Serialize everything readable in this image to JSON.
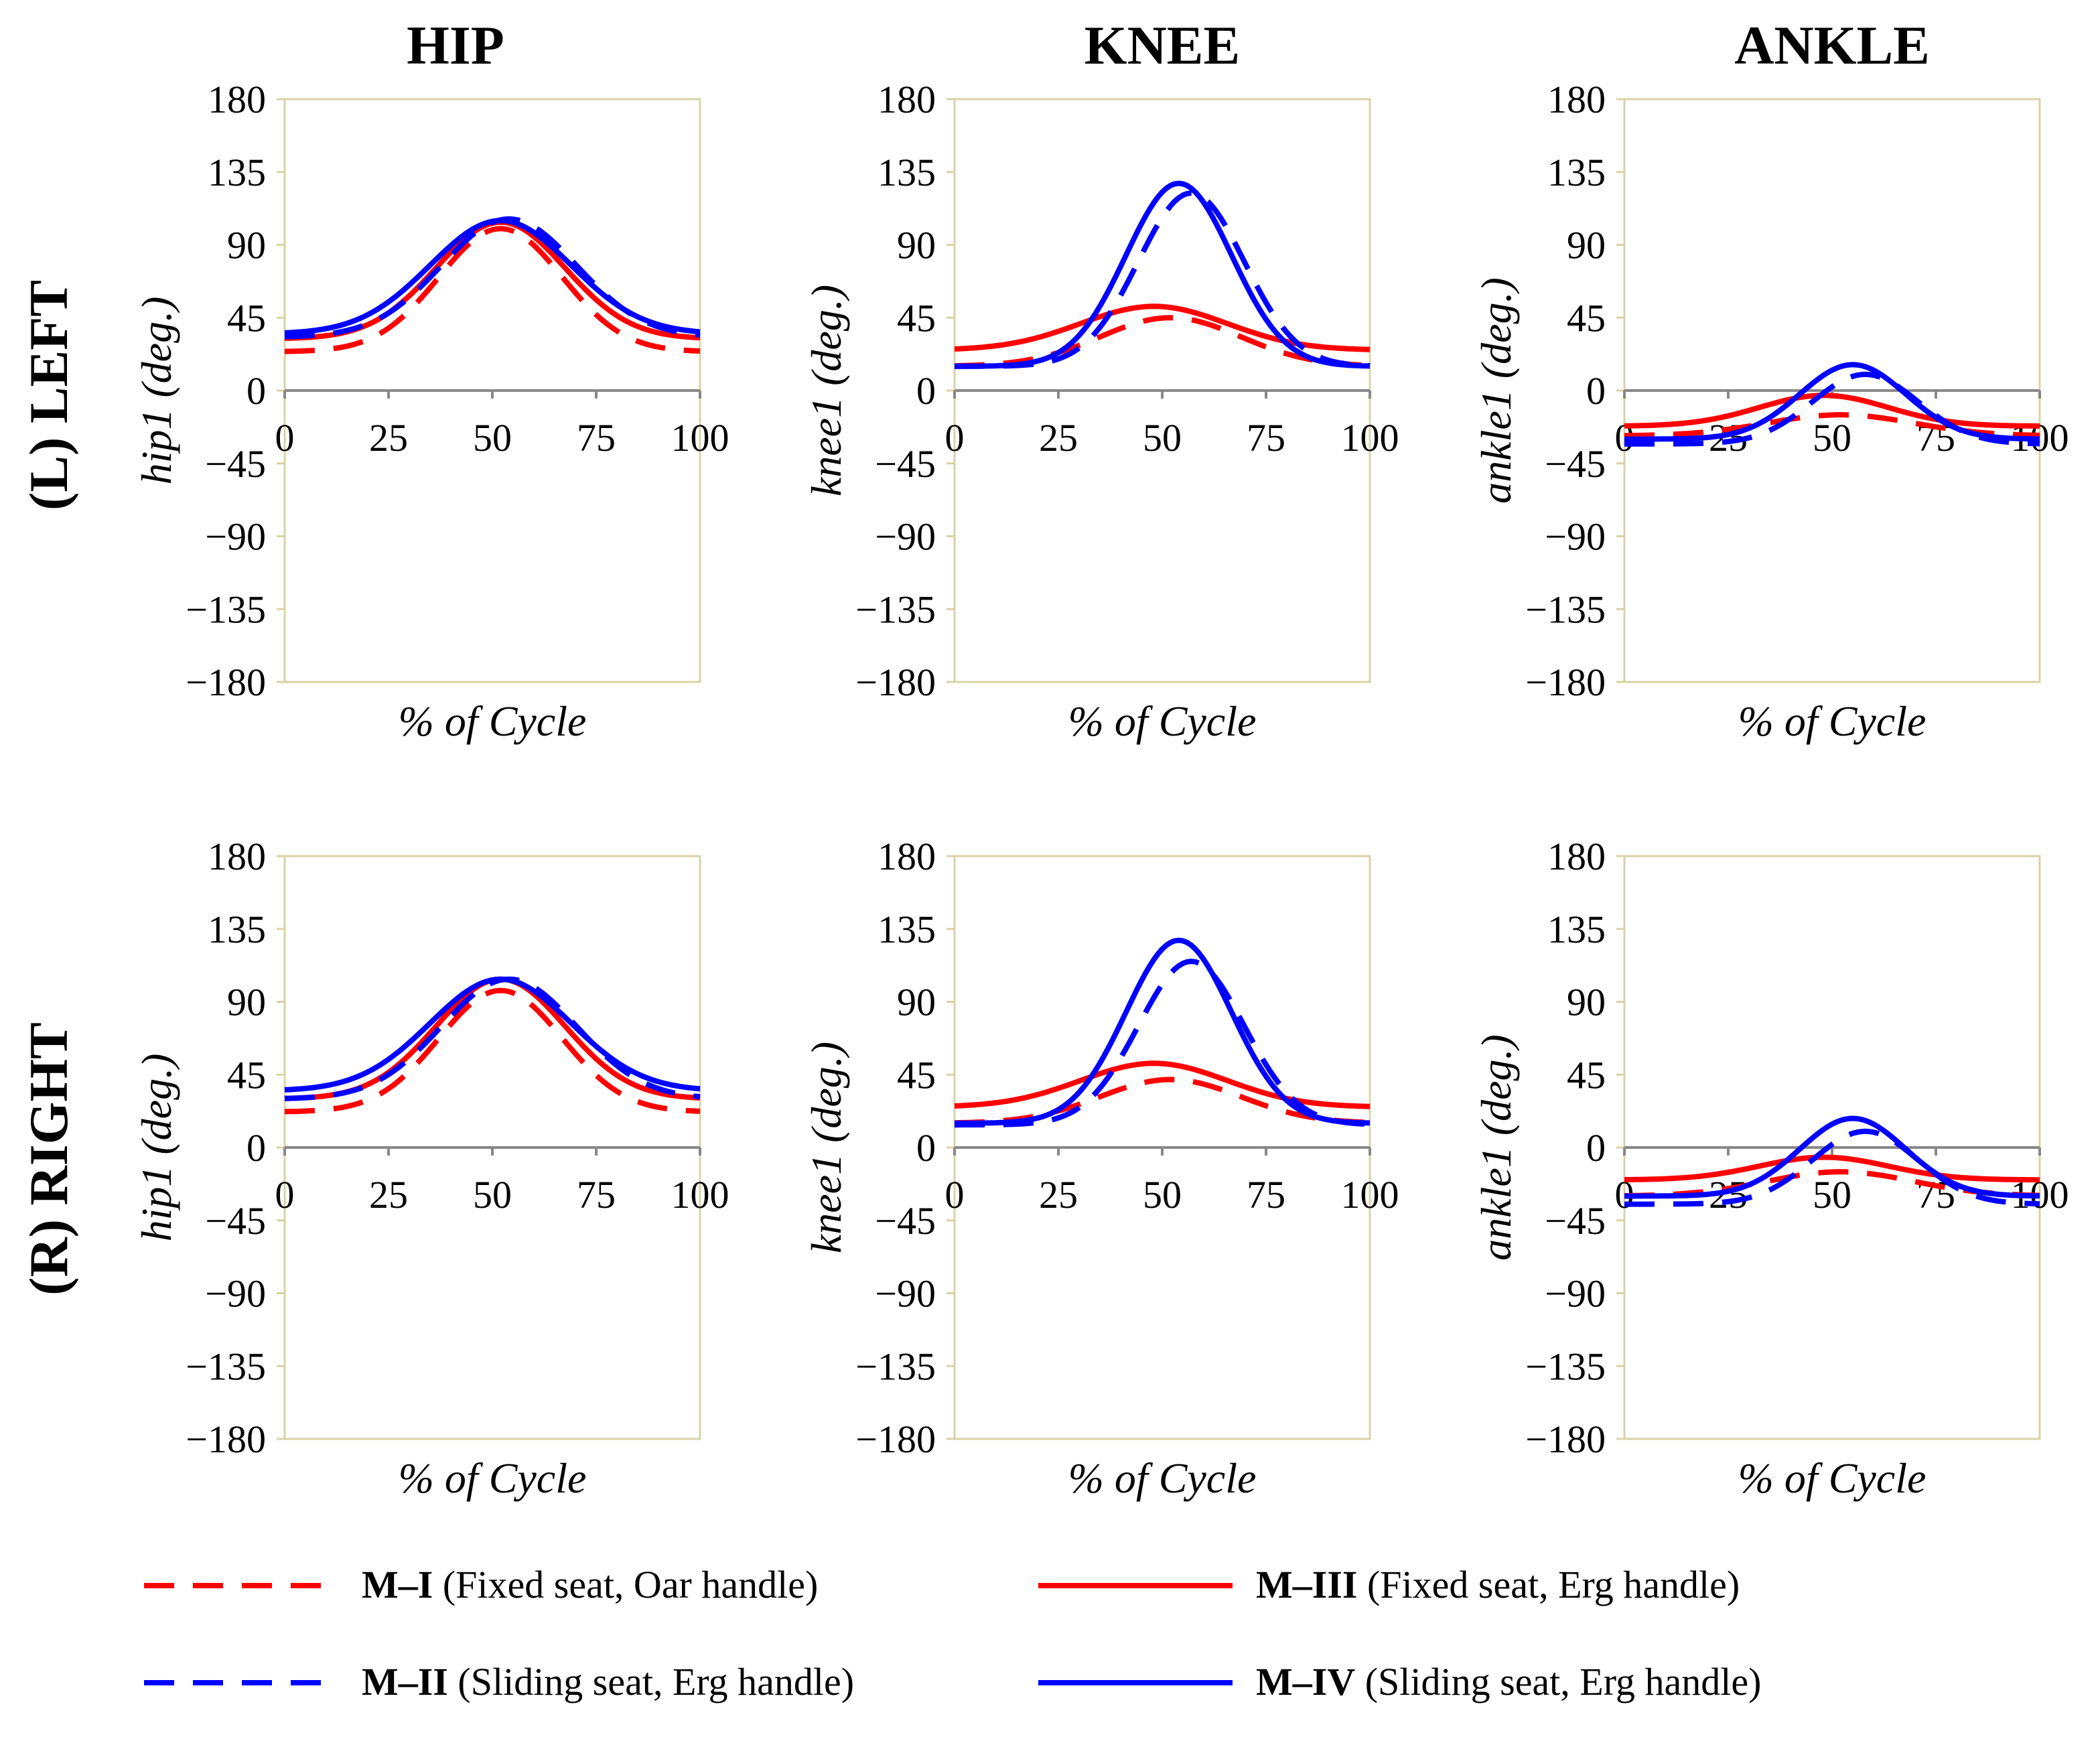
{
  "column_titles": [
    "HIP",
    "KNEE",
    "ANKLE"
  ],
  "row_titles": [
    "(L) LEFT",
    "(R) RIGHT"
  ],
  "colors": {
    "red": "#ff0000",
    "blue": "#0000ff",
    "frame": "#d8d3a6",
    "zero_line": "#888888"
  },
  "legend": [
    {
      "code": "M–I",
      "desc": " (Fixed seat, Oar handle)",
      "color": "#ff0000",
      "dashed": true
    },
    {
      "code": "M–III",
      "desc": " (Fixed seat, Erg handle)",
      "color": "#ff0000",
      "dashed": false
    },
    {
      "code": "M–II",
      "desc": " (Sliding seat, Erg handle)",
      "color": "#0000ff",
      "dashed": true
    },
    {
      "code": "M–IV",
      "desc": " (Sliding seat, Erg handle)",
      "color": "#0000ff",
      "dashed": false
    }
  ],
  "chart_data": [
    {
      "type": "line",
      "row": "(L) LEFT",
      "col": "HIP",
      "xlabel": "% of Cycle",
      "ylabel": "hip1 (deg.)",
      "xlim": [
        0,
        100
      ],
      "ylim": [
        -180,
        180
      ],
      "xticks": [
        "0",
        "25",
        "50",
        "75",
        "100"
      ],
      "yticks": [
        "180",
        "135",
        "90",
        "45",
        "0",
        "−45",
        "−90",
        "−135",
        "−180"
      ],
      "series": [
        {
          "name": "M–I",
          "base": 24,
          "peak": 100,
          "tp": 52,
          "w": 21
        },
        {
          "name": "M–III",
          "base": 32,
          "peak": 104,
          "tp": 52,
          "w": 22
        },
        {
          "name": "M–II",
          "base": 33,
          "peak": 106,
          "tp": 54,
          "w": 23
        },
        {
          "name": "M–IV",
          "base": 35,
          "peak": 105,
          "tp": 52,
          "w": 24
        }
      ]
    },
    {
      "type": "line",
      "row": "(L) LEFT",
      "col": "KNEE",
      "xlabel": "% of Cycle",
      "ylabel": "knee1 (deg.)",
      "xlim": [
        0,
        100
      ],
      "ylim": [
        -180,
        180
      ],
      "xticks": [
        "0",
        "25",
        "50",
        "75",
        "100"
      ],
      "yticks": [
        "180",
        "135",
        "90",
        "45",
        "0",
        "−45",
        "−90",
        "−135",
        "−180"
      ],
      "series": [
        {
          "name": "M–I",
          "base": 15,
          "peak": 45,
          "tp": 52,
          "w": 24
        },
        {
          "name": "M–III",
          "base": 25,
          "peak": 52,
          "tp": 48,
          "w": 25
        },
        {
          "name": "M–II",
          "base": 15,
          "peak": 122,
          "tp": 57,
          "w": 18
        },
        {
          "name": "M–IV",
          "base": 15,
          "peak": 128,
          "tp": 54,
          "w": 18
        }
      ]
    },
    {
      "type": "line",
      "row": "(L) LEFT",
      "col": "ANKLE",
      "xlabel": "% of Cycle",
      "ylabel": "ankle1 (deg.)",
      "xlim": [
        0,
        100
      ],
      "ylim": [
        -180,
        180
      ],
      "xticks": [
        "0",
        "25",
        "50",
        "75",
        "100"
      ],
      "yticks": [
        "180",
        "135",
        "90",
        "45",
        "0",
        "−45",
        "−90",
        "−135",
        "−180"
      ],
      "series": [
        {
          "name": "M–I",
          "base": -28,
          "peak": -15,
          "tp": 52,
          "w": 25
        },
        {
          "name": "M–III",
          "base": -22,
          "peak": -3,
          "tp": 48,
          "w": 22
        },
        {
          "name": "M–II",
          "base": -33,
          "peak": 10,
          "tp": 58,
          "w": 18
        },
        {
          "name": "M–IV",
          "base": -30,
          "peak": 16,
          "tp": 55,
          "w": 18
        }
      ]
    },
    {
      "type": "line",
      "row": "(R) RIGHT",
      "col": "HIP",
      "xlabel": "% of Cycle",
      "ylabel": "hip1 (deg.)",
      "xlim": [
        0,
        100
      ],
      "ylim": [
        -180,
        180
      ],
      "xticks": [
        "0",
        "25",
        "50",
        "75",
        "100"
      ],
      "yticks": [
        "180",
        "135",
        "90",
        "45",
        "0",
        "−45",
        "−90",
        "−135",
        "−180"
      ],
      "series": [
        {
          "name": "M–I",
          "base": 22,
          "peak": 97,
          "tp": 52,
          "w": 21
        },
        {
          "name": "M–III",
          "base": 30,
          "peak": 104,
          "tp": 52,
          "w": 22
        },
        {
          "name": "M–II",
          "base": 30,
          "peak": 104,
          "tp": 54,
          "w": 23
        },
        {
          "name": "M–IV",
          "base": 35,
          "peak": 104,
          "tp": 52,
          "w": 24
        }
      ]
    },
    {
      "type": "line",
      "row": "(R) RIGHT",
      "col": "KNEE",
      "xlabel": "% of Cycle",
      "ylabel": "knee1 (deg.)",
      "xlim": [
        0,
        100
      ],
      "ylim": [
        -180,
        180
      ],
      "xticks": [
        "0",
        "25",
        "50",
        "75",
        "100"
      ],
      "yticks": [
        "180",
        "135",
        "90",
        "45",
        "0",
        "−45",
        "−90",
        "−135",
        "−180"
      ],
      "series": [
        {
          "name": "M–I",
          "base": 15,
          "peak": 42,
          "tp": 52,
          "w": 24
        },
        {
          "name": "M–III",
          "base": 25,
          "peak": 52,
          "tp": 48,
          "w": 25
        },
        {
          "name": "M–II",
          "base": 14,
          "peak": 115,
          "tp": 57,
          "w": 18
        },
        {
          "name": "M–IV",
          "base": 15,
          "peak": 128,
          "tp": 54,
          "w": 18
        }
      ]
    },
    {
      "type": "line",
      "row": "(R) RIGHT",
      "col": "ANKLE",
      "xlabel": "% of Cycle",
      "ylabel": "ankle1 (deg.)",
      "xlim": [
        0,
        100
      ],
      "ylim": [
        -180,
        180
      ],
      "xticks": [
        "0",
        "25",
        "50",
        "75",
        "100"
      ],
      "yticks": [
        "180",
        "135",
        "90",
        "45",
        "0",
        "−45",
        "−90",
        "−135",
        "−180"
      ],
      "series": [
        {
          "name": "M–I",
          "base": -30,
          "peak": -15,
          "tp": 52,
          "w": 25
        },
        {
          "name": "M–III",
          "base": -20,
          "peak": -6,
          "tp": 48,
          "w": 22
        },
        {
          "name": "M–II",
          "base": -35,
          "peak": 10,
          "tp": 58,
          "w": 18
        },
        {
          "name": "M–IV",
          "base": -30,
          "peak": 18,
          "tp": 55,
          "w": 18
        }
      ]
    }
  ]
}
